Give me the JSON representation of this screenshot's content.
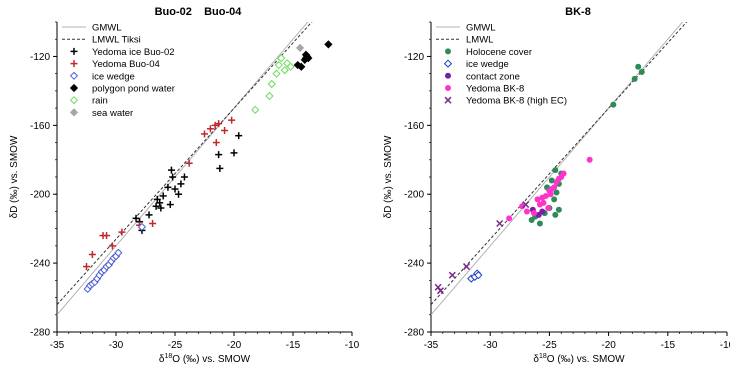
{
  "chart_data": [
    {
      "type": "scatter",
      "title": "Buo-02    Buo-04",
      "xlabel_parts": [
        "δ",
        "18",
        "O (‰) vs. SMOW"
      ],
      "ylabel": "δD (‰) vs. SMOW",
      "xlim": [
        -35,
        -10
      ],
      "ylim": [
        -280,
        -100
      ],
      "x_ticks": [
        "-35",
        "-30",
        "-25",
        "-20",
        "-15",
        "-10"
      ],
      "y_ticks": [
        "-120",
        "-160",
        "-200",
        "-240",
        "-280"
      ],
      "lines": [
        {
          "name": "GMWL",
          "slope": 8,
          "intercept": 10,
          "color": "#b3b3b3",
          "dash": "none"
        },
        {
          "name": "LMWL Tiksi",
          "slope": 7.6,
          "intercept": 1.9,
          "color": "#333333",
          "dash": "3,2"
        }
      ],
      "series": [
        {
          "name": "Yedoma ice Buo-02",
          "marker": "plus",
          "color": "#000000",
          "points": [
            [
              -28.3,
              -214
            ],
            [
              -28.0,
              -216
            ],
            [
              -27.8,
              -221
            ],
            [
              -27.2,
              -212
            ],
            [
              -26.6,
              -207
            ],
            [
              -26.5,
              -203
            ],
            [
              -26.3,
              -205
            ],
            [
              -26.2,
              -208
            ],
            [
              -26.0,
              -201
            ],
            [
              -25.6,
              -196
            ],
            [
              -25.2,
              -190
            ],
            [
              -25.0,
              -197
            ],
            [
              -24.7,
              -200
            ],
            [
              -24.5,
              -194
            ],
            [
              -24.2,
              -190
            ],
            [
              -25.3,
              -186
            ],
            [
              -21.3,
              -177
            ],
            [
              -21.2,
              -185
            ],
            [
              -20.0,
              -176
            ],
            [
              -19.6,
              -166
            ],
            [
              -25.4,
              -206
            ]
          ]
        },
        {
          "name": "Yedoma Buo-04",
          "marker": "plus",
          "color": "#c1272d",
          "points": [
            [
              -32.5,
              -242
            ],
            [
              -32.0,
              -235
            ],
            [
              -31.1,
              -224
            ],
            [
              -30.8,
              -224
            ],
            [
              -30.3,
              -230
            ],
            [
              -29.5,
              -222
            ],
            [
              -28.0,
              -218
            ],
            [
              -26.9,
              -217
            ],
            [
              -23.8,
              -182
            ],
            [
              -22.5,
              -165
            ],
            [
              -22.0,
              -162
            ],
            [
              -21.6,
              -160
            ],
            [
              -21.3,
              -159
            ],
            [
              -21.5,
              -170
            ],
            [
              -20.8,
              -163
            ],
            [
              -20.2,
              -157
            ]
          ]
        },
        {
          "name": "ice wedge",
          "marker": "diamond-open",
          "color": "#4b5bd6",
          "points": [
            [
              -32.4,
              -255
            ],
            [
              -32.2,
              -253
            ],
            [
              -32.0,
              -252
            ],
            [
              -31.8,
              -251
            ],
            [
              -31.6,
              -249
            ],
            [
              -31.4,
              -247
            ],
            [
              -31.2,
              -245
            ],
            [
              -31.0,
              -244
            ],
            [
              -30.8,
              -242
            ],
            [
              -30.6,
              -241
            ],
            [
              -30.4,
              -239
            ],
            [
              -30.2,
              -237
            ],
            [
              -30.0,
              -236
            ],
            [
              -29.8,
              -234
            ],
            [
              -27.8,
              -219
            ]
          ]
        },
        {
          "name": "polygon pond water",
          "marker": "diamond-filled",
          "color": "#000000",
          "points": [
            [
              -14.6,
              -125
            ],
            [
              -14.3,
              -126
            ],
            [
              -14.0,
              -122
            ],
            [
              -13.9,
              -121
            ],
            [
              -13.8,
              -120
            ],
            [
              -13.7,
              -121
            ],
            [
              -13.9,
              -119
            ],
            [
              -12.0,
              -113
            ]
          ]
        },
        {
          "name": "rain",
          "marker": "diamond-open",
          "color": "#66dd55",
          "points": [
            [
              -18.2,
              -151
            ],
            [
              -17.0,
              -143
            ],
            [
              -16.8,
              -136
            ],
            [
              -16.4,
              -130
            ],
            [
              -16.2,
              -125
            ],
            [
              -16.0,
              -121
            ],
            [
              -15.7,
              -128
            ],
            [
              -15.5,
              -124
            ],
            [
              -15.2,
              -126
            ]
          ]
        },
        {
          "name": "sea water",
          "marker": "diamond-filled",
          "color": "#a6a6a6",
          "points": [
            [
              -14.4,
              -115
            ]
          ]
        }
      ],
      "legend": "top-left"
    },
    {
      "type": "scatter",
      "title": "BK-8",
      "xlabel_parts": [
        "δ",
        "18",
        "O (‰) vs. SMOW"
      ],
      "ylabel": "δD (‰) vs. SMOW",
      "xlim": [
        -35,
        -10
      ],
      "ylim": [
        -280,
        -100
      ],
      "x_ticks": [
        "-35",
        "-30",
        "-25",
        "-20",
        "-15",
        "-10"
      ],
      "y_ticks": [
        "-120",
        "-160",
        "-200",
        "-240",
        "-280"
      ],
      "lines": [
        {
          "name": "GMWL",
          "slope": 8,
          "intercept": 10,
          "color": "#b3b3b3",
          "dash": "none"
        },
        {
          "name": "LMWL",
          "slope": 7.6,
          "intercept": 1.9,
          "color": "#333333",
          "dash": "3,2"
        }
      ],
      "series": [
        {
          "name": "Holocene cover",
          "marker": "circle-filled",
          "color": "#2e8b57",
          "points": [
            [
              -17.5,
              -126
            ],
            [
              -17.2,
              -129
            ],
            [
              -17.8,
              -133
            ],
            [
              -19.6,
              -148
            ],
            [
              -26.2,
              -213
            ],
            [
              -25.8,
              -217
            ],
            [
              -25.4,
              -211
            ],
            [
              -25.0,
              -208
            ],
            [
              -24.6,
              -203
            ],
            [
              -24.4,
              -199
            ],
            [
              -24.2,
              -194
            ],
            [
              -24.0,
              -188
            ],
            [
              -24.5,
              -186
            ],
            [
              -24.8,
              -192
            ],
            [
              -25.2,
              -196
            ],
            [
              -24.2,
              -209
            ],
            [
              -24.5,
              -212
            ],
            [
              -26.5,
              -215
            ]
          ]
        },
        {
          "name": "ice wedge",
          "marker": "diamond-open",
          "color": "#1a3fcc",
          "points": [
            [
              -31.6,
              -249
            ],
            [
              -31.3,
              -248
            ],
            [
              -31.1,
              -246
            ],
            [
              -31.0,
              -247
            ]
          ]
        },
        {
          "name": "contact zone",
          "marker": "circle-filled",
          "color": "#7b1fa2",
          "points": [
            [
              -25.6,
              -210
            ],
            [
              -25.9,
              -212
            ],
            [
              -26.4,
              -209
            ]
          ]
        },
        {
          "name": "Yedoma BK-8",
          "marker": "circle-filled",
          "color": "#ff33cc",
          "points": [
            [
              -28.4,
              -214
            ],
            [
              -27.3,
              -207
            ],
            [
              -26.9,
              -210
            ],
            [
              -26.0,
              -203
            ],
            [
              -25.8,
              -206
            ],
            [
              -25.6,
              -202
            ],
            [
              -25.3,
              -201
            ],
            [
              -25.0,
              -198
            ],
            [
              -24.8,
              -197
            ],
            [
              -24.6,
              -196
            ],
            [
              -24.4,
              -193
            ],
            [
              -24.2,
              -191
            ],
            [
              -24.0,
              -190
            ],
            [
              -23.8,
              -188
            ],
            [
              -25.5,
              -205
            ],
            [
              -24.9,
              -200
            ],
            [
              -21.6,
              -180
            ],
            [
              -26.3,
              -211
            ],
            [
              -25.1,
              -208
            ]
          ]
        },
        {
          "name": "Yedoma BK-8 (high EC)",
          "marker": "x",
          "color": "#7b2d8e",
          "points": [
            [
              -34.4,
              -254
            ],
            [
              -34.2,
              -256
            ],
            [
              -33.2,
              -247
            ],
            [
              -32.0,
              -242
            ],
            [
              -29.2,
              -217
            ],
            [
              -27.0,
              -206
            ]
          ]
        }
      ],
      "legend": "top-left"
    }
  ]
}
